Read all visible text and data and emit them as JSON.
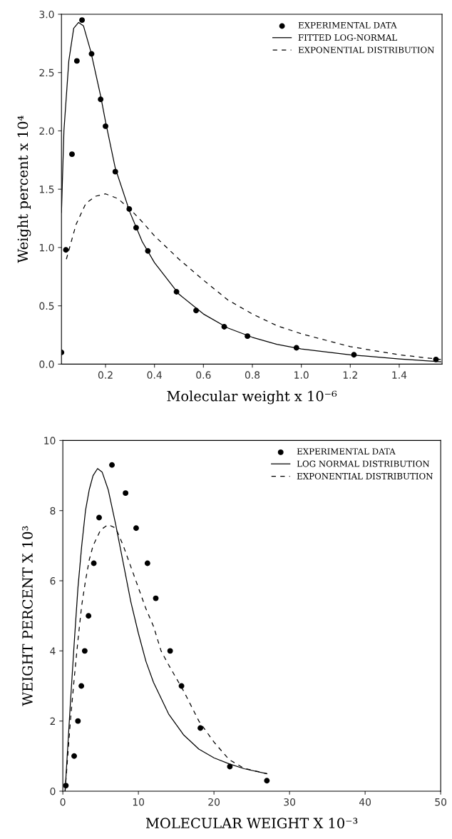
{
  "chart_data": [
    {
      "type": "scatter",
      "xlabel": "Molecular weight x 10⁻⁶",
      "ylabel": "Weight percent x 10⁴",
      "xlim": [
        0.02,
        1.575
      ],
      "ylim": [
        0,
        3.0
      ],
      "xticks": [
        {
          "value": 0.2,
          "label": "0.2"
        },
        {
          "value": 0.4,
          "label": "0.4"
        },
        {
          "value": 0.6,
          "label": "0.6"
        },
        {
          "value": 0.8,
          "label": "0.8"
        },
        {
          "value": 1.0,
          "label": "1.0"
        },
        {
          "value": 1.2,
          "label": "1.2"
        },
        {
          "value": 1.4,
          "label": "1.4"
        }
      ],
      "yticks": [
        {
          "value": 0,
          "label": "0.0"
        },
        {
          "value": 0.5,
          "label": "0.5"
        },
        {
          "value": 1.0,
          "label": "1.0"
        },
        {
          "value": 1.5,
          "label": "1.5"
        },
        {
          "value": 2.0,
          "label": "2.0"
        },
        {
          "value": 2.5,
          "label": "2.5"
        },
        {
          "value": 3.0,
          "label": "3.0"
        }
      ],
      "grid": false,
      "legend": "top right",
      "series": [
        {
          "name": "EXPERIMENTAL DATA",
          "marker": "circle",
          "color": "#000000",
          "x": [
            0.02,
            0.038,
            0.063,
            0.083,
            0.104,
            0.143,
            0.18,
            0.2,
            0.24,
            0.297,
            0.325,
            0.373,
            0.49,
            0.57,
            0.685,
            0.78,
            0.98,
            1.215,
            1.55
          ],
          "values": [
            0.1,
            0.98,
            1.8,
            2.6,
            2.95,
            2.66,
            2.27,
            2.04,
            1.65,
            1.33,
            1.17,
            0.97,
            0.62,
            0.46,
            0.32,
            0.24,
            0.14,
            0.08,
            0.04
          ]
        },
        {
          "name": "FITTED LOG-NORMAL",
          "type": "line",
          "line_style": "solid",
          "color": "#000000",
          "x": [
            0.02,
            0.03,
            0.05,
            0.07,
            0.09,
            0.11,
            0.14,
            0.18,
            0.2,
            0.24,
            0.3,
            0.35,
            0.4,
            0.5,
            0.6,
            0.7,
            0.8,
            0.9,
            1.0,
            1.2,
            1.4,
            1.57
          ],
          "values": [
            1.3,
            2.0,
            2.6,
            2.88,
            2.93,
            2.9,
            2.68,
            2.3,
            2.08,
            1.68,
            1.3,
            1.05,
            0.87,
            0.6,
            0.43,
            0.31,
            0.23,
            0.17,
            0.13,
            0.08,
            0.045,
            0.02
          ]
        },
        {
          "name": "EXPONENTIAL DISTRIBUTION",
          "type": "line",
          "line_style": "dashed",
          "color": "#000000",
          "x": [
            0.04,
            0.08,
            0.12,
            0.16,
            0.2,
            0.25,
            0.3,
            0.35,
            0.4,
            0.5,
            0.6,
            0.7,
            0.8,
            0.9,
            1.0,
            1.2,
            1.4,
            1.57
          ],
          "values": [
            0.9,
            1.2,
            1.38,
            1.44,
            1.46,
            1.42,
            1.33,
            1.22,
            1.1,
            0.9,
            0.72,
            0.55,
            0.43,
            0.33,
            0.26,
            0.15,
            0.08,
            0.04
          ]
        }
      ]
    },
    {
      "type": "scatter",
      "xlabel": "MOLECULAR WEIGHT X 10⁻³",
      "ylabel": "WEIGHT PERCENT X 10³",
      "xlim": [
        0,
        50
      ],
      "ylim": [
        0,
        10
      ],
      "xticks": [
        0,
        10,
        20,
        30,
        40,
        50
      ],
      "yticks": [
        0,
        2,
        4,
        6,
        8,
        10
      ],
      "grid": false,
      "legend": "top right",
      "series": [
        {
          "name": "EXPERIMENTAL DATA",
          "marker": "circle",
          "color": "#000000",
          "x": [
            0.4,
            1.5,
            2.0,
            2.45,
            2.9,
            3.4,
            4.1,
            4.8,
            6.5,
            8.3,
            9.7,
            11.2,
            12.3,
            14.2,
            15.7,
            18.2,
            22.1,
            27.0
          ],
          "values": [
            0.16,
            1.0,
            2.0,
            3.0,
            4.0,
            5.0,
            6.5,
            7.8,
            9.3,
            8.5,
            7.5,
            6.5,
            5.5,
            4.0,
            3.0,
            1.8,
            0.7,
            0.3
          ]
        },
        {
          "name": "LOG NORMAL DISTRIBUTION",
          "type": "line",
          "line_style": "solid",
          "color": "#000000",
          "x": [
            0.3,
            1,
            1.5,
            2,
            2.5,
            3,
            3.5,
            4,
            4.6,
            5.2,
            6,
            7,
            8,
            9,
            10,
            11,
            12,
            14,
            16,
            18,
            20,
            22,
            24,
            27
          ],
          "values": [
            0,
            2.5,
            4.2,
            5.8,
            7.0,
            8.0,
            8.6,
            9.0,
            9.2,
            9.1,
            8.6,
            7.6,
            6.5,
            5.4,
            4.5,
            3.7,
            3.1,
            2.2,
            1.6,
            1.2,
            0.95,
            0.78,
            0.64,
            0.5
          ]
        },
        {
          "name": "EXPONENTIAL DISTRIBUTION",
          "type": "line",
          "line_style": "dashed",
          "color": "#000000",
          "x": [
            0.3,
            1,
            1.5,
            2,
            2.5,
            3,
            3.5,
            4,
            5,
            6,
            7,
            8,
            9,
            10,
            11,
            12,
            13,
            14,
            16,
            18,
            20,
            22,
            24,
            27
          ],
          "values": [
            0,
            2.0,
            3.2,
            4.3,
            5.3,
            6.0,
            6.6,
            7.0,
            7.45,
            7.6,
            7.5,
            7.0,
            6.4,
            5.8,
            5.2,
            4.7,
            4.0,
            3.6,
            2.85,
            2.0,
            1.4,
            0.9,
            0.65,
            0.5
          ]
        }
      ]
    }
  ]
}
